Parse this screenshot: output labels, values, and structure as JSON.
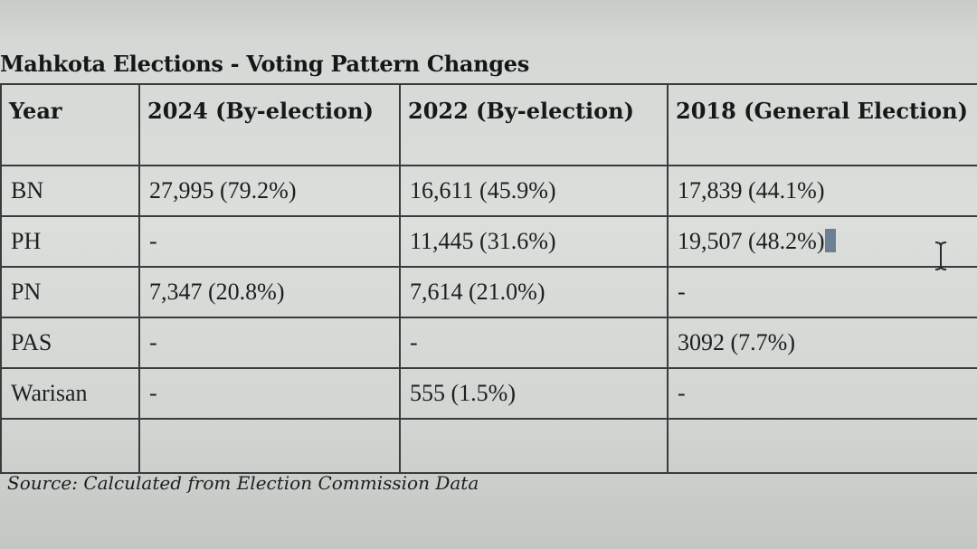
{
  "title": "Mahkota Elections - Voting Pattern Changes",
  "table": {
    "headers": [
      "Year",
      "2024 (By-election)",
      "2022 (By-election)",
      "2018 (General Election)"
    ],
    "rows": [
      {
        "party": "BN",
        "y2024": "27,995 (79.2%)",
        "y2022": "16,611 (45.9%)",
        "y2018": "17,839 (44.1%)"
      },
      {
        "party": "PH",
        "y2024": "-",
        "y2022": "11,445 (31.6%)",
        "y2018": "19,507 (48.2%)"
      },
      {
        "party": "PN",
        "y2024": "7,347 (20.8%)",
        "y2022": "7,614 (21.0%)",
        "y2018": "-"
      },
      {
        "party": "PAS",
        "y2024": "-",
        "y2022": "-",
        "y2018": "3092 (7.7%)"
      },
      {
        "party": "Warisan",
        "y2024": "-",
        "y2022": "555 (1.5%)",
        "y2018": "-"
      }
    ]
  },
  "source": "Source: Calculated from Election Commission Data",
  "cursor": {
    "icon": "text-ibeam-cursor-icon"
  },
  "caret_icon": "text-insertion-caret-icon"
}
